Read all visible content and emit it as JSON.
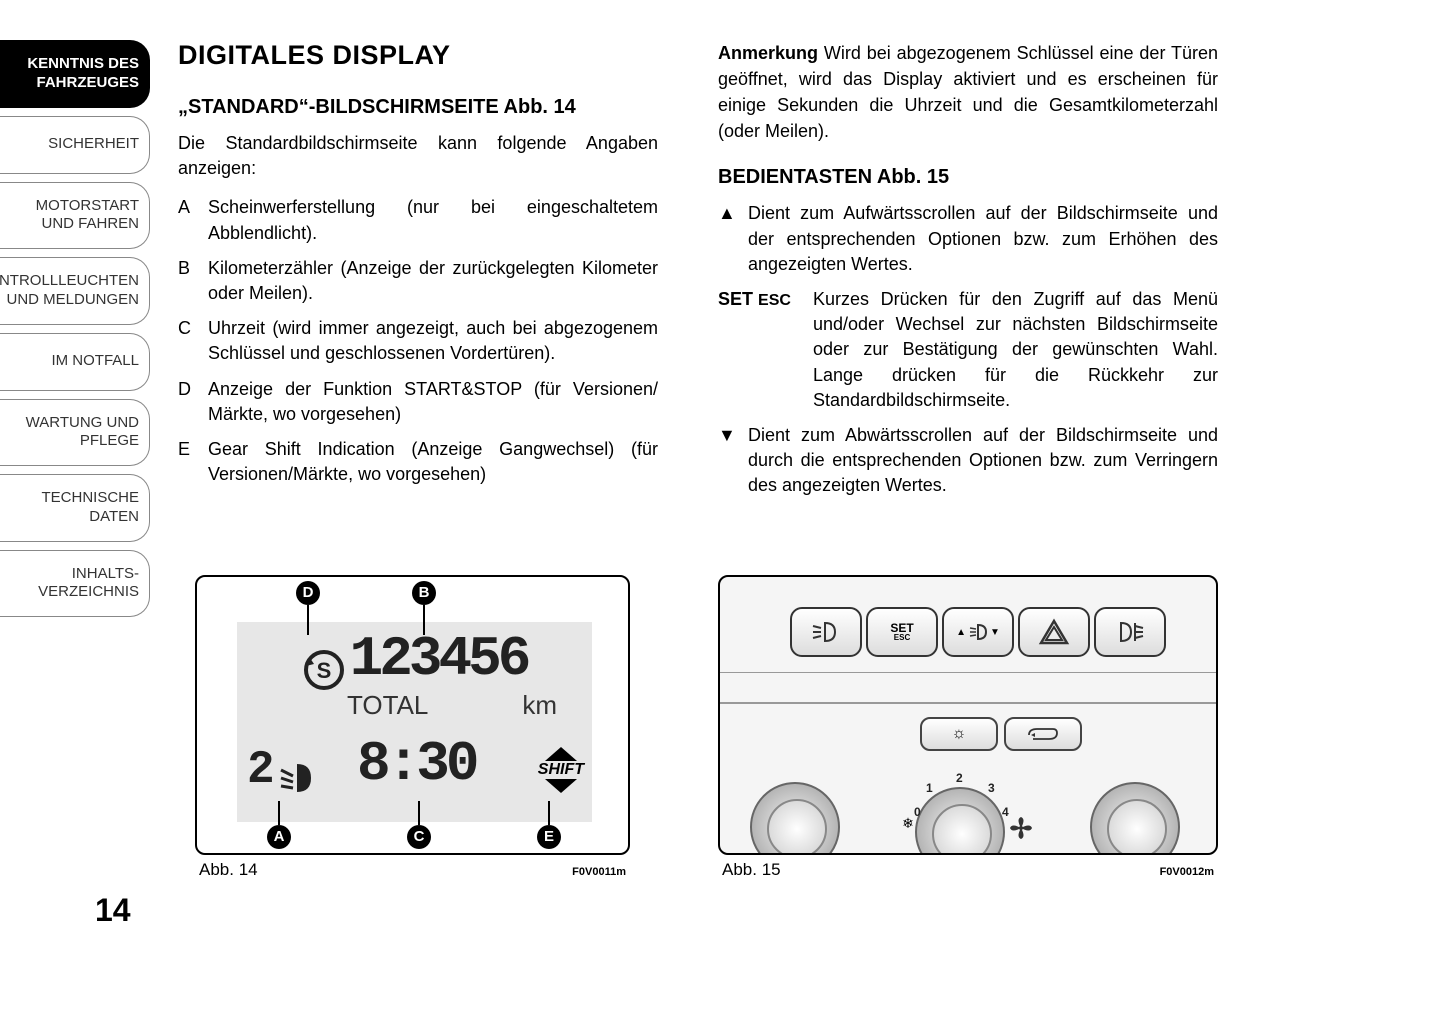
{
  "page_number": "14",
  "sidebar": {
    "tabs": [
      {
        "label": "KENNTNIS DES FAHRZEUGES",
        "active": true
      },
      {
        "label": "SICHERHEIT",
        "active": false
      },
      {
        "label": "MOTORSTART UND FAHREN",
        "active": false
      },
      {
        "label": "KONTROLLLEUCHTEN UND MELDUNGEN",
        "active": false
      },
      {
        "label": "IM NOTFALL",
        "active": false
      },
      {
        "label": "WARTUNG UND PFLEGE",
        "active": false
      },
      {
        "label": "TECHNISCHE DATEN",
        "active": false
      },
      {
        "label": "INHALTS-VERZEICHNIS",
        "active": false
      }
    ]
  },
  "col1": {
    "h1": "DIGITALES DISPLAY",
    "h2": "„STANDARD“-BILDSCHIRMSEITE Abb. 14",
    "intro": "Die Standardbildschirmseite kann folgende Angaben anzeigen:",
    "items": [
      {
        "label": "A",
        "text": "Scheinwerferstellung (nur bei eingeschaltetem Abblendlicht)."
      },
      {
        "label": "B",
        "text": "Kilometerzähler (Anzeige der zurückgelegten Kilometer oder Meilen)."
      },
      {
        "label": "C",
        "text": "Uhrzeit (wird immer angezeigt, auch bei abgezogenem Schlüssel und geschlossenen Vordertüren)."
      },
      {
        "label": "D",
        "text": "Anzeige der Funktion START&STOP (für Versionen/ Märkte, wo vorgesehen)"
      },
      {
        "label": "E",
        "text": "Gear Shift Indication (Anzeige Gangwechsel) (für Versionen/Märkte, wo vorgesehen)"
      }
    ]
  },
  "col2": {
    "note_label": "Anmerkung",
    "note_text": " Wird bei abgezogenem Schlüssel eine der Türen geöffnet, wird das Display aktiviert und es erscheinen für einige Sekunden die Uhrzeit und die Gesamtkilometerzahl (oder Meilen).",
    "h2": "BEDIENTASTEN Abb. 15",
    "up_label": "▲",
    "up_text": "Dient zum Aufwärtsscrollen auf der Bildschirmseite und der entsprechenden Optionen bzw. zum Erhöhen des angezeigten Wertes.",
    "set_label_1": "SET",
    "set_label_2": "ESC",
    "set_text": "Kurzes Drücken für den Zugriff auf das Menü und/oder Wechsel zur nächsten Bildschirmseite oder zur Bestätigung der gewünschten Wahl. Lange drücken für die Rückkehr zur Standardbildschirmseite.",
    "down_label": "▼",
    "down_text": "Dient zum Abwärtsscrollen auf der Bildschirmseite und durch die entsprechenden Optionen bzw. zum Verringern des angezeigten Wertes."
  },
  "fig14": {
    "caption": "Abb. 14",
    "code": "F0V0011m",
    "callouts": {
      "A": "A",
      "B": "B",
      "C": "C",
      "D": "D",
      "E": "E"
    },
    "lcd": {
      "odometer": "123456",
      "total": "TOTAL",
      "km": "km",
      "headlight_level": "2",
      "time": "8:30",
      "shift": "SHIFT",
      "s_letter": "S"
    }
  },
  "fig15": {
    "caption": "Abb. 15",
    "code": "F0V0012m",
    "buttons": {
      "set_top": "SET",
      "set_bottom": "ESC",
      "dial_0": "0",
      "dial_1": "1",
      "dial_2": "2",
      "dial_3": "3",
      "dial_4": "4"
    }
  }
}
